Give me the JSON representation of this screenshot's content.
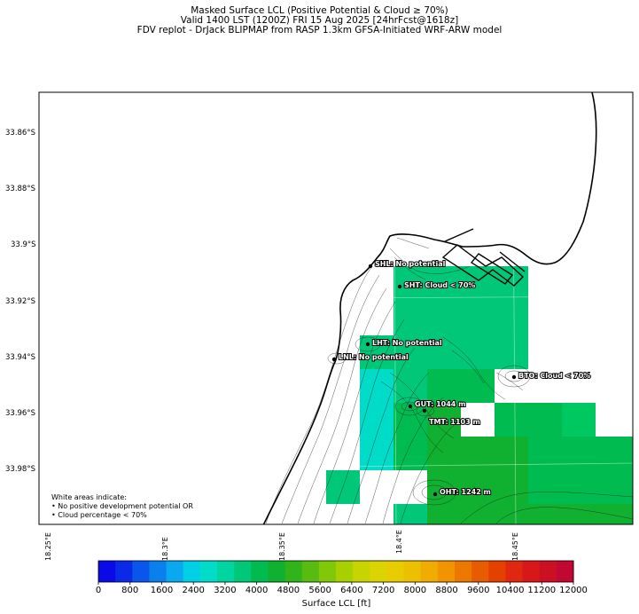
{
  "title": {
    "line1": "Masked Surface LCL (Positive Potential & Cloud ≥ 70%)",
    "line2": "Valid 1400 LST (1200Z) FRI 15 Aug 2025 [24hrFcst@1618z]",
    "line3": "FDV replot - DrJack BLIPMAP from RASP 1.3km GFSA-Initiated WRF-ARW model"
  },
  "y_ticks": [
    "33.86°S",
    "33.88°S",
    "33.9°S",
    "33.92°S",
    "33.94°S",
    "33.96°S",
    "33.98°S"
  ],
  "x_ticks": [
    "18.25°E",
    "18.3°E",
    "18.35°E",
    "18.4°E",
    "18.45°E"
  ],
  "stations": [
    {
      "label": "SHL: No potential"
    },
    {
      "label": "SHT: Cloud < 70%"
    },
    {
      "label": "LHT: No potential"
    },
    {
      "label": "LNL: No potential"
    },
    {
      "label": "BTO: Cloud < 70%"
    },
    {
      "label": "GUT: 1044 m"
    },
    {
      "label": "TMT: 1103 m"
    },
    {
      "label": "OHT: 1242 m"
    }
  ],
  "legend_note": {
    "line1": "White areas indicate:",
    "line2": "• No positive development potential OR",
    "line3": "• Cloud percentage < 70%"
  },
  "colorbar": {
    "title": "Surface LCL [ft]",
    "tick_labels": [
      "0",
      "800",
      "1600",
      "2400",
      "3200",
      "4000",
      "4800",
      "5600",
      "6400",
      "7200",
      "8000",
      "8800",
      "9600",
      "10400",
      "11200",
      "12000"
    ],
    "min": 0,
    "max": 12000,
    "colors": [
      "#0a0ae6",
      "#0a2ae8",
      "#0a55ea",
      "#0a80ec",
      "#0aa8ee",
      "#00d0e6",
      "#00dcc8",
      "#00d4a0",
      "#00c878",
      "#00bc50",
      "#10b030",
      "#30b41a",
      "#58bc10",
      "#80c808",
      "#a8d000",
      "#c8d400",
      "#dcd400",
      "#e6cc00",
      "#ecc000",
      "#f0ac00",
      "#f09400",
      "#ec7800",
      "#e85c00",
      "#e44000",
      "#e02810",
      "#d81818",
      "#cc1024",
      "#c00830"
    ]
  },
  "colors": {
    "teal_bright": "#00dcc8",
    "teal": "#00c878",
    "green": "#00bc50",
    "green_dark": "#10b030"
  }
}
